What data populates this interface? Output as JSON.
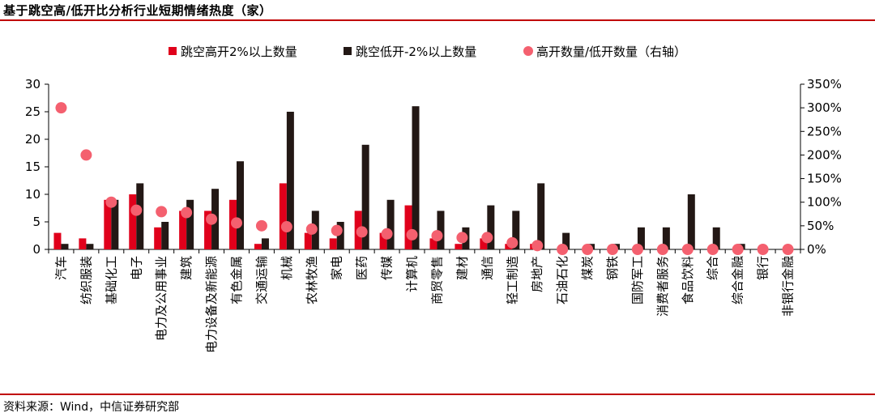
{
  "title": "基于跳空高/低开比分析行业短期情绪热度（家）",
  "source": "资料来源：Wind，中信证券研究部",
  "chart_data": {
    "type": "bar",
    "title": "基于跳空高/低开比分析行业短期情绪热度（家）",
    "categories": [
      "汽车",
      "纺织服装",
      "基础化工",
      "电子",
      "电力及公用事业",
      "建筑",
      "电力设备及新能源",
      "有色金属",
      "交通运输",
      "机械",
      "农林牧渔",
      "家电",
      "医药",
      "传媒",
      "计算机",
      "商贸零售",
      "建材",
      "通信",
      "轻工制造",
      "房地产",
      "石油石化",
      "煤炭",
      "钢铁",
      "国防军工",
      "消费者服务",
      "食品饮料",
      "综合",
      "综合金融",
      "银行",
      "非银行金融"
    ],
    "series": [
      {
        "name": "跳空高开2%以上数量",
        "type": "bar",
        "axis": "left",
        "color": "#e0001b",
        "values": [
          3,
          2,
          9,
          10,
          4,
          7,
          7,
          9,
          1,
          12,
          3,
          2,
          7,
          3,
          8,
          2,
          1,
          2,
          1,
          1,
          0,
          0,
          0,
          0,
          0,
          0,
          0,
          0,
          0,
          0
        ]
      },
      {
        "name": "跳空低开-2%以上数量",
        "type": "bar",
        "axis": "left",
        "color": "#231815",
        "values": [
          1,
          1,
          9,
          12,
          5,
          9,
          11,
          16,
          2,
          25,
          7,
          5,
          19,
          9,
          26,
          7,
          4,
          8,
          7,
          12,
          3,
          1,
          1,
          4,
          4,
          10,
          4,
          1,
          0,
          0
        ]
      },
      {
        "name": "高开数量/低开数量（右轴）",
        "type": "scatter",
        "axis": "right",
        "color": "#f4606f",
        "values": [
          300,
          200,
          100,
          83,
          80,
          78,
          64,
          56,
          50,
          48,
          43,
          40,
          37,
          33,
          31,
          29,
          25,
          25,
          14,
          8,
          0,
          0,
          0,
          0,
          0,
          0,
          0,
          0,
          0,
          0
        ]
      }
    ],
    "y_left": {
      "min": 0,
      "max": 30,
      "ticks": [
        0,
        5,
        10,
        15,
        20,
        25,
        30
      ]
    },
    "y_right": {
      "min": 0,
      "max": 350,
      "ticks": [
        "0%",
        "50%",
        "100%",
        "150%",
        "200%",
        "250%",
        "300%",
        "350%"
      ]
    },
    "legend_position": "top",
    "grid": false
  }
}
